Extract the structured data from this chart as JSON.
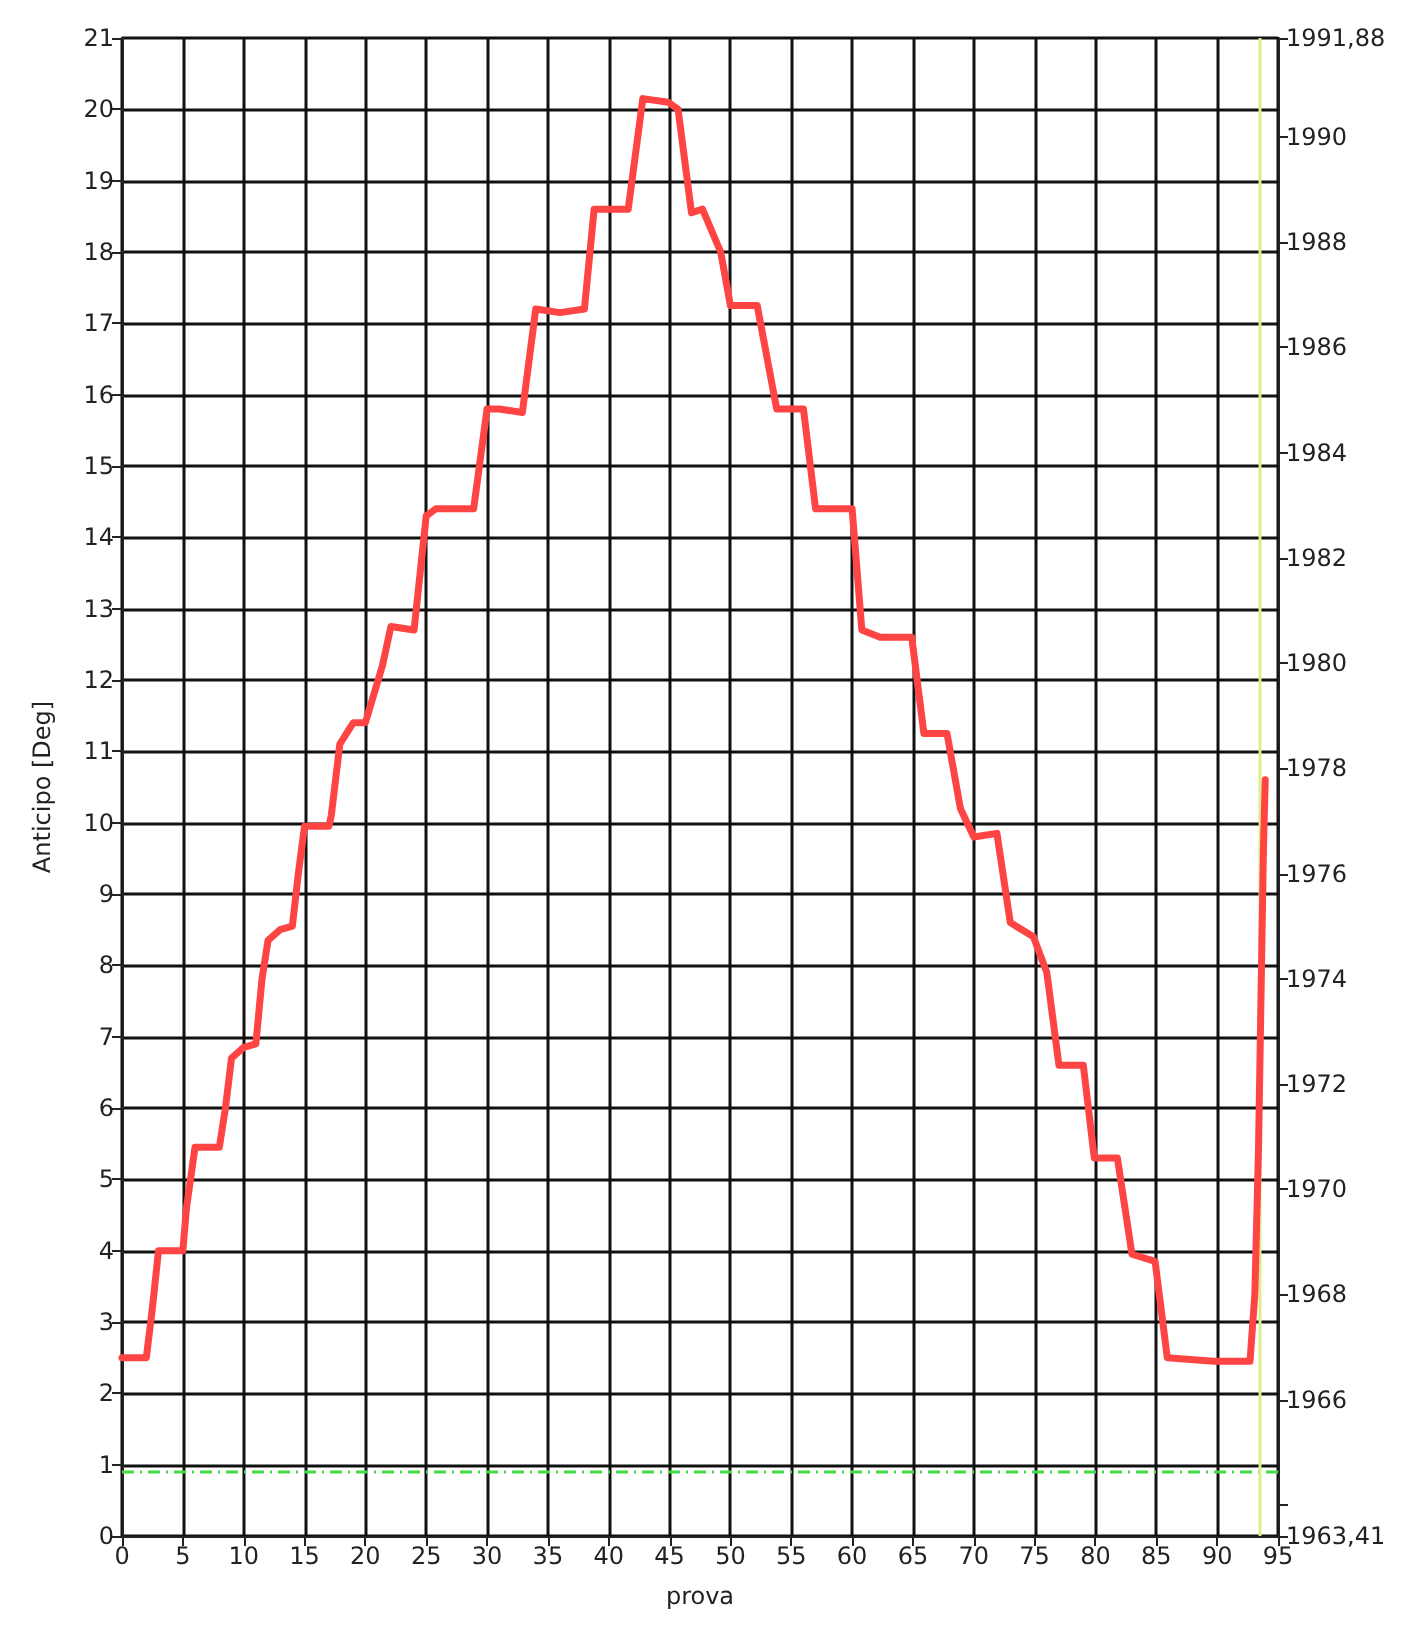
{
  "chart_data": {
    "type": "line",
    "xlabel": "prova",
    "ylabel": "Anticipo [Deg]",
    "x": [
      0,
      2,
      2.5,
      3,
      5,
      5.3,
      6,
      8,
      8.5,
      9,
      10,
      11,
      11.5,
      12,
      13,
      14,
      14.5,
      15,
      17,
      17.2,
      17.9,
      19,
      20,
      21.4,
      22.1,
      24,
      25,
      25.8,
      28.9,
      30,
      31,
      32.9,
      34,
      36,
      38,
      38.8,
      41.6,
      42.8,
      44.9,
      45.7,
      46.8,
      47.7,
      49.2,
      50,
      52.2,
      53.8,
      56,
      57,
      60,
      60.8,
      62.3,
      64.9,
      65.9,
      67.8,
      68.9,
      70,
      71.9,
      73,
      74.9,
      76,
      77,
      79,
      79.9,
      81.8,
      83,
      84.9,
      85.9,
      89.7,
      92.7,
      93.1,
      93.4,
      93.8,
      93.95
    ],
    "series": [
      {
        "color": "#ff4444",
        "values": [
          2.5,
          2.5,
          3.2,
          4,
          4,
          4.6,
          5.45,
          5.45,
          6,
          6.7,
          6.85,
          6.9,
          7.8,
          8.35,
          8.5,
          8.55,
          9.3,
          9.95,
          9.95,
          10.1,
          11.1,
          11.4,
          11.4,
          12.2,
          12.75,
          12.7,
          14.3,
          14.4,
          14.4,
          15.8,
          15.8,
          15.75,
          17.2,
          17.15,
          17.2,
          18.6,
          18.6,
          20.15,
          20.1,
          20.0,
          18.55,
          18.6,
          18.0,
          17.25,
          17.25,
          15.8,
          15.8,
          14.4,
          14.4,
          12.7,
          12.6,
          12.6,
          11.25,
          11.25,
          10.2,
          9.8,
          9.85,
          8.6,
          8.4,
          7.9,
          6.6,
          6.6,
          5.3,
          5.3,
          3.95,
          3.85,
          2.5,
          2.45,
          2.45,
          3.4,
          5.45,
          9.6,
          10.6
        ]
      }
    ],
    "xlim": [
      0,
      95
    ],
    "xticks": [
      0,
      5,
      10,
      15,
      20,
      25,
      30,
      35,
      40,
      45,
      50,
      55,
      60,
      65,
      70,
      75,
      80,
      85,
      90,
      95
    ],
    "ylim": [
      0,
      21
    ],
    "yticks": [
      0,
      1,
      2,
      3,
      4,
      5,
      6,
      7,
      8,
      9,
      10,
      11,
      12,
      13,
      14,
      15,
      16,
      17,
      18,
      19,
      20,
      21
    ],
    "y2lim": [
      1963.41,
      1991.88
    ],
    "y2ticks": [
      {
        "value": 1963.41,
        "label": "1963,41"
      },
      {
        "value": 1964,
        "label": null
      },
      1966,
      1968,
      1970,
      1972,
      1974,
      1976,
      1978,
      1980,
      1982,
      1984,
      1986,
      1988,
      1990,
      {
        "value": 1991.88,
        "label": "1991,88"
      }
    ],
    "ref_lines": [
      {
        "axis": "y",
        "value": 0.9,
        "color": "#44dd44",
        "line_style": "dashed"
      },
      {
        "axis": "x",
        "value": 93.5,
        "color": "#ddee88",
        "line_style": "solid"
      }
    ],
    "grid": true,
    "marker": "none",
    "line_style": "solid"
  }
}
